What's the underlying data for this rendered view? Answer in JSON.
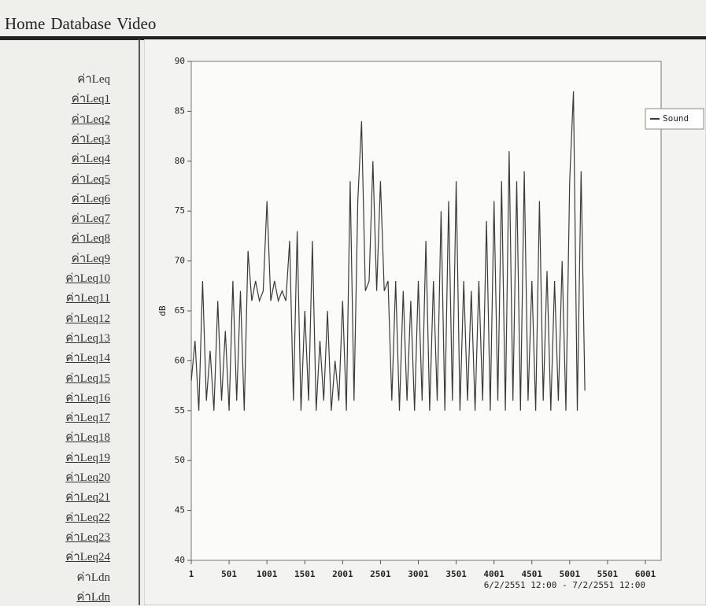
{
  "nav": [
    "Home",
    "Database",
    "Video"
  ],
  "sidebar": {
    "sections": [
      {
        "heading": "ค่าLeq",
        "links": [
          "ค่าLeq1",
          "ค่าLeq2",
          "ค่าLeq3",
          "ค่าLeq4",
          "ค่าLeq5",
          "ค่าLeq6",
          "ค่าLeq7",
          "ค่าLeq8",
          "ค่าLeq9",
          "ค่าLeq10",
          "ค่าLeq11",
          "ค่าLeq12",
          "ค่าLeq13",
          "ค่าLeq14",
          "ค่าLeq15",
          "ค่าLeq16",
          "ค่าLeq17",
          "ค่าLeq18",
          "ค่าLeq19",
          "ค่าLeq20",
          "ค่าLeq21",
          "ค่าLeq22",
          "ค่าLeq23",
          "ค่าLeq24"
        ]
      },
      {
        "heading": "ค่าLdn",
        "links": [
          "ค่าLdn"
        ]
      }
    ]
  },
  "chart_data": {
    "type": "line",
    "y_label": "dB",
    "x_label": "6/2/2551 12:00 - 7/2/2551 12:00",
    "x": [
      1,
      51,
      101,
      151,
      201,
      251,
      301,
      351,
      401,
      451,
      501,
      551,
      601,
      651,
      701,
      751,
      801,
      851,
      901,
      951,
      1001,
      1051,
      1101,
      1151,
      1201,
      1251,
      1301,
      1351,
      1401,
      1451,
      1501,
      1551,
      1601,
      1651,
      1701,
      1751,
      1801,
      1851,
      1901,
      1951,
      2001,
      2051,
      2101,
      2151,
      2201,
      2251,
      2301,
      2351,
      2401,
      2451,
      2501,
      2551,
      2601,
      2651,
      2701,
      2751,
      2801,
      2851,
      2901,
      2951,
      3001,
      3051,
      3101,
      3151,
      3201,
      3251,
      3301,
      3351,
      3401,
      3451,
      3501,
      3551,
      3601,
      3651,
      3701,
      3751,
      3801,
      3851,
      3901,
      3951,
      4001,
      4051,
      4101,
      4151,
      4201,
      4251,
      4301,
      4351,
      4401,
      4451,
      4501,
      4551,
      4601,
      4651,
      4701,
      4751,
      4801,
      4851,
      4901,
      4951,
      5001,
      5051,
      5101,
      5151,
      5201
    ],
    "series": [
      {
        "name": "Sound",
        "color": "#3a3a3a",
        "values": [
          58,
          62,
          55,
          68,
          56,
          61,
          55,
          66,
          56,
          63,
          55,
          68,
          56,
          67,
          55,
          71,
          66,
          68,
          66,
          67,
          76,
          66,
          68,
          66,
          67,
          66,
          72,
          56,
          73,
          55,
          65,
          56,
          72,
          55,
          62,
          56,
          65,
          55,
          60,
          56,
          66,
          55,
          78,
          56,
          76,
          84,
          67,
          68,
          80,
          67,
          78,
          67,
          68,
          56,
          68,
          55,
          67,
          56,
          66,
          55,
          68,
          56,
          72,
          55,
          68,
          56,
          75,
          55,
          76,
          56,
          78,
          55,
          68,
          56,
          67,
          55,
          68,
          56,
          74,
          55,
          76,
          56,
          78,
          55,
          81,
          56,
          78,
          55,
          79,
          56,
          68,
          55,
          76,
          56,
          69,
          55,
          68,
          56,
          70,
          55,
          78,
          87,
          55,
          79,
          57
        ]
      }
    ],
    "xlim": [
      1,
      6001
    ],
    "xticks": [
      1,
      501,
      1001,
      1501,
      2001,
      2501,
      3001,
      3501,
      4001,
      4501,
      5001,
      5501,
      6001
    ],
    "ylim": [
      40,
      90
    ],
    "yticks": [
      40,
      45,
      50,
      55,
      60,
      65,
      70,
      75,
      80,
      85,
      90
    ],
    "legend": "top-right"
  }
}
